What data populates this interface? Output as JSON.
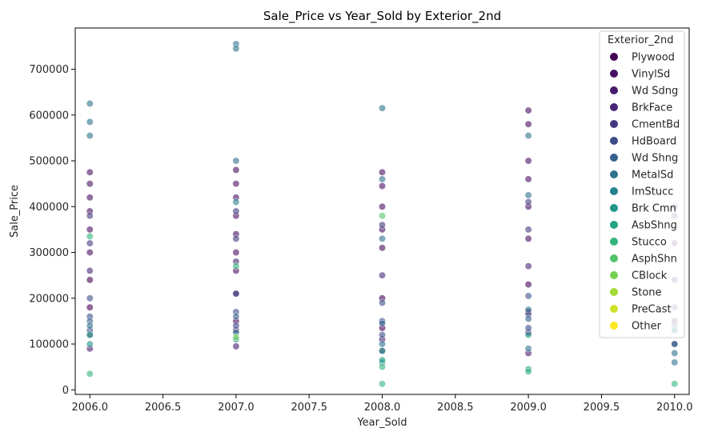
{
  "chart_data": {
    "type": "scatter",
    "title": "Sale_Price vs Year_Sold by Exterior_2nd",
    "xlabel": "Year_Sold",
    "ylabel": "Sale_Price",
    "xlim": [
      2005.9,
      2010.1
    ],
    "ylim": [
      -10000,
      790000
    ],
    "xticks": [
      "2006.0",
      "2006.5",
      "2007.0",
      "2007.5",
      "2008.0",
      "2008.5",
      "2009.0",
      "2009.5",
      "2010.0"
    ],
    "yticks": [
      "0",
      "100000",
      "200000",
      "300000",
      "400000",
      "500000",
      "600000",
      "700000"
    ],
    "grid": false,
    "legend": {
      "title": "Exterior_2nd",
      "placement": "top-right",
      "entries": [
        "Plywood",
        "VinylSd",
        "Wd Sdng",
        "BrkFace",
        "CmentBd",
        "HdBoard",
        "Wd Shng",
        "MetalSd",
        "ImStucc",
        "Brk Cmn",
        "AsbShng",
        "Stucco",
        "AsphShn",
        "CBlock",
        "Stone",
        "PreCast",
        "Other"
      ]
    },
    "colors": [
      "#440154",
      "#481668",
      "#482878",
      "#3e4989",
      "#31688e",
      "#26828e",
      "#1f9e89",
      "#35b779",
      "#6ece58",
      "#b5de2b",
      "#fde725"
    ],
    "series": [
      {
        "name": "Plywood",
        "x": [
          2006,
          2006,
          2007,
          2007,
          2008,
          2008,
          2009,
          2009,
          2010
        ],
        "y": [
          180000,
          240000,
          150000,
          210000,
          135000,
          200000,
          170000,
          230000,
          150000
        ]
      },
      {
        "name": "VinylSd",
        "x": [
          2006,
          2006,
          2006,
          2006,
          2006,
          2006,
          2007,
          2007,
          2007,
          2007,
          2007,
          2007,
          2007,
          2008,
          2008,
          2008,
          2008,
          2008,
          2009,
          2009,
          2009,
          2009,
          2009,
          2009,
          2010,
          2010
        ],
        "y": [
          475000,
          450000,
          420000,
          390000,
          350000,
          300000,
          480000,
          450000,
          420000,
          380000,
          340000,
          300000,
          260000,
          475000,
          445000,
          400000,
          350000,
          310000,
          610000,
          580000,
          500000,
          460000,
          400000,
          330000,
          400000,
          320000
        ]
      },
      {
        "name": "Wd Sdng",
        "x": [
          2006,
          2006,
          2007,
          2007,
          2008,
          2008,
          2009,
          2009,
          2010
        ],
        "y": [
          120000,
          90000,
          130000,
          95000,
          110000,
          85000,
          125000,
          80000,
          100000
        ]
      },
      {
        "name": "BrkFace",
        "x": [
          2006,
          2007,
          2008,
          2009,
          2010
        ],
        "y": [
          260000,
          280000,
          250000,
          270000,
          240000
        ]
      },
      {
        "name": "CmentBd",
        "x": [
          2006,
          2006,
          2007,
          2007,
          2008,
          2009,
          2009,
          2010
        ],
        "y": [
          380000,
          320000,
          390000,
          330000,
          360000,
          410000,
          350000,
          380000
        ]
      },
      {
        "name": "HdBoard",
        "x": [
          2006,
          2006,
          2006,
          2007,
          2007,
          2007,
          2008,
          2008,
          2008,
          2009,
          2009,
          2009,
          2010,
          2010
        ],
        "y": [
          200000,
          160000,
          130000,
          210000,
          170000,
          140000,
          190000,
          150000,
          120000,
          205000,
          165000,
          135000,
          180000,
          130000
        ]
      },
      {
        "name": "Wd Shng",
        "x": [
          2006,
          2007,
          2008,
          2009,
          2010
        ],
        "y": [
          150000,
          160000,
          145000,
          155000,
          140000
        ]
      },
      {
        "name": "MetalSd",
        "x": [
          2006,
          2006,
          2006,
          2006,
          2007,
          2007,
          2007,
          2007,
          2008,
          2008,
          2008,
          2008,
          2009,
          2009,
          2009,
          2009,
          2010,
          2010,
          2010
        ],
        "y": [
          625000,
          585000,
          555000,
          140000,
          755000,
          745000,
          500000,
          125000,
          615000,
          460000,
          330000,
          100000,
          555000,
          425000,
          175000,
          90000,
          100000,
          80000,
          60000
        ]
      },
      {
        "name": "ImStucc",
        "x": [
          2007,
          2008
        ],
        "y": [
          410000,
          60000
        ]
      },
      {
        "name": "Brk Cmn",
        "x": [
          2006,
          2008,
          2009
        ],
        "y": [
          100000,
          85000,
          120000
        ]
      },
      {
        "name": "AsbShng",
        "x": [
          2006,
          2007,
          2008,
          2009,
          2010
        ],
        "y": [
          120000,
          110000,
          65000,
          45000,
          130000
        ]
      },
      {
        "name": "Stucco",
        "x": [
          2006,
          2006,
          2007,
          2008,
          2008,
          2009,
          2010
        ],
        "y": [
          335000,
          35000,
          270000,
          50000,
          13000,
          40000,
          13000
        ]
      },
      {
        "name": "AsphShn",
        "x": [
          2008
        ],
        "y": [
          380000
        ]
      },
      {
        "name": "CBlock",
        "x": [
          2007
        ],
        "y": [
          115000
        ]
      }
    ]
  }
}
